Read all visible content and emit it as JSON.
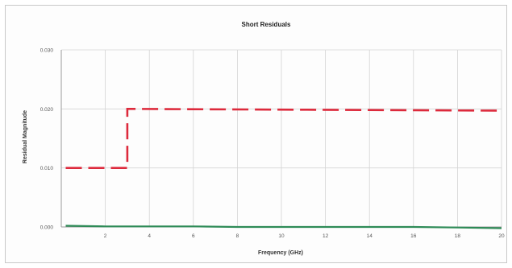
{
  "chart_data": {
    "type": "line",
    "title": "Short Residuals",
    "xlabel": "Frequency (GHz)",
    "ylabel": "Residual Magnitude",
    "xlim": [
      0,
      20
    ],
    "ylim": [
      0,
      0.03
    ],
    "x_ticks": [
      2,
      4,
      6,
      8,
      10,
      12,
      14,
      16,
      18,
      20
    ],
    "y_ticks": [
      0.0,
      0.01,
      0.02,
      0.03
    ],
    "y_tick_labels": [
      "0.000",
      "0.010",
      "0.020",
      "0.030"
    ],
    "grid": true,
    "legend": "none",
    "series": [
      {
        "color": "#dd2a3c",
        "style": "dashed",
        "x": [
          0.2,
          3.0,
          3.0,
          20.0
        ],
        "y": [
          0.01,
          0.01,
          0.02,
          0.0197
        ]
      },
      {
        "color": "#2e8b57",
        "style": "solid",
        "x": [
          0.2,
          2,
          4,
          6,
          8,
          10,
          12,
          14,
          16,
          18,
          20
        ],
        "y": [
          0.0002,
          0.0001,
          0.0001,
          0.0001,
          0.0,
          0.0,
          0.0,
          0.0,
          0.0,
          -0.0001,
          -0.0002
        ]
      }
    ]
  }
}
